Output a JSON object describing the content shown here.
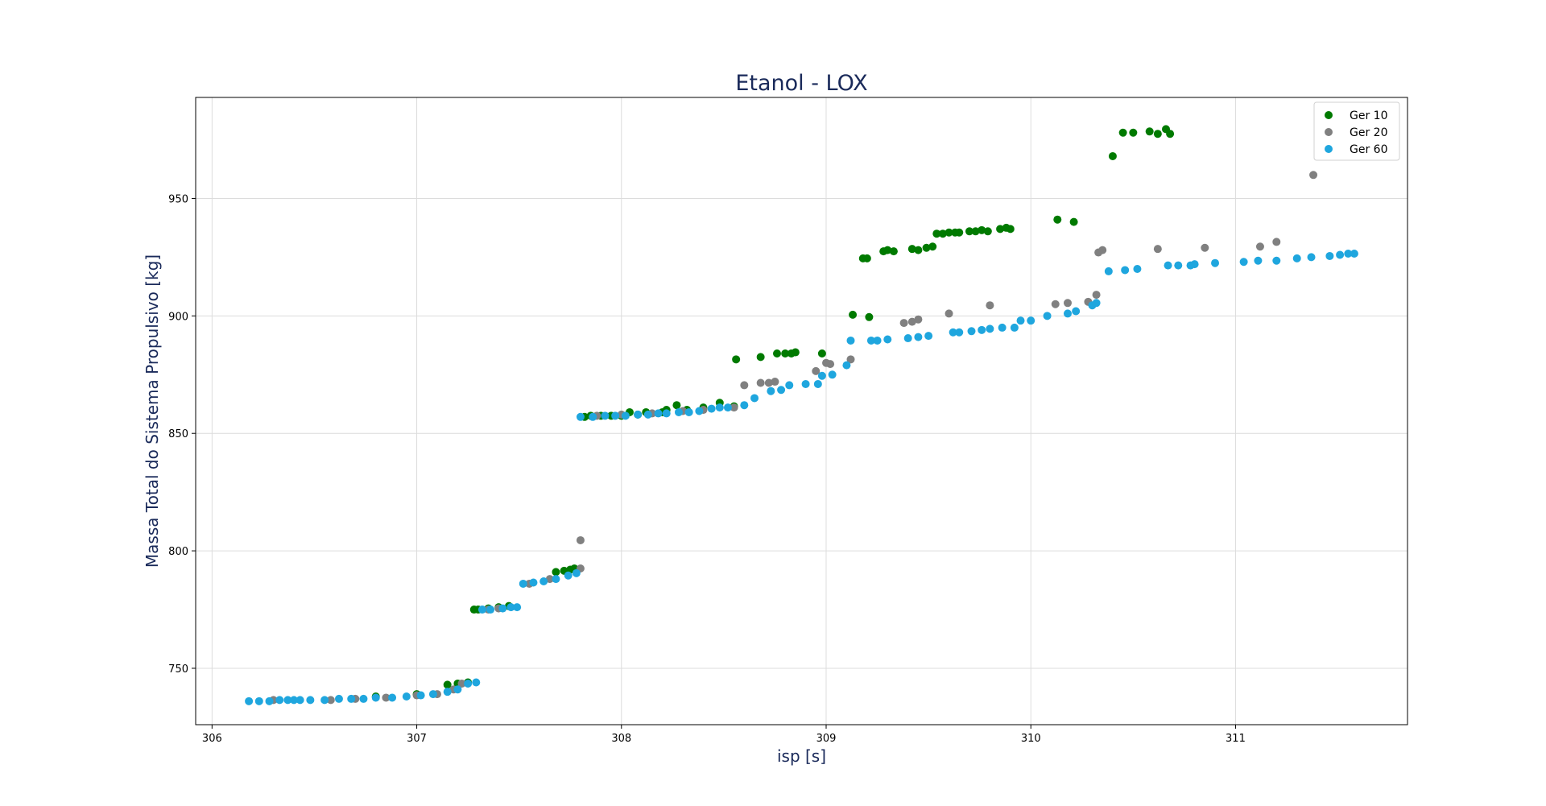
{
  "chart_data": {
    "type": "scatter",
    "title": "Etanol - LOX",
    "xlabel": "isp [s]",
    "ylabel": "Massa Total do Sistema Propulsivo [kg]",
    "xlim": [
      305.92,
      311.84
    ],
    "ylim": [
      726,
      993
    ],
    "xticks": [
      306,
      307,
      308,
      309,
      310,
      311
    ],
    "yticks": [
      750,
      800,
      850,
      900,
      950
    ],
    "grid": true,
    "legend_position": "top-right",
    "series": [
      {
        "name": "Ger 10",
        "color": "#007a00",
        "points": [
          [
            306.8,
            738.0
          ],
          [
            307.0,
            739.0
          ],
          [
            307.15,
            743.0
          ],
          [
            307.2,
            743.5
          ],
          [
            307.25,
            744.0
          ],
          [
            307.28,
            775.0
          ],
          [
            307.3,
            775.0
          ],
          [
            307.35,
            775.5
          ],
          [
            307.4,
            776.0
          ],
          [
            307.45,
            776.5
          ],
          [
            307.68,
            791.0
          ],
          [
            307.72,
            791.5
          ],
          [
            307.75,
            792.0
          ],
          [
            307.77,
            792.5
          ],
          [
            307.82,
            857.0
          ],
          [
            307.85,
            857.5
          ],
          [
            307.9,
            857.5
          ],
          [
            307.95,
            857.5
          ],
          [
            308.0,
            857.5
          ],
          [
            308.04,
            859.0
          ],
          [
            308.08,
            858.0
          ],
          [
            308.12,
            859.0
          ],
          [
            308.2,
            859.0
          ],
          [
            308.22,
            860.0
          ],
          [
            308.27,
            862.0
          ],
          [
            308.32,
            860.0
          ],
          [
            308.4,
            861.0
          ],
          [
            308.48,
            863.0
          ],
          [
            308.55,
            861.5
          ],
          [
            308.56,
            881.5
          ],
          [
            308.68,
            882.5
          ],
          [
            308.76,
            884.0
          ],
          [
            308.8,
            884.0
          ],
          [
            308.83,
            884.0
          ],
          [
            308.85,
            884.5
          ],
          [
            308.98,
            884.0
          ],
          [
            309.13,
            900.5
          ],
          [
            309.21,
            899.5
          ],
          [
            309.18,
            924.5
          ],
          [
            309.2,
            924.5
          ],
          [
            309.28,
            927.5
          ],
          [
            309.3,
            928.0
          ],
          [
            309.33,
            927.5
          ],
          [
            309.42,
            928.5
          ],
          [
            309.45,
            928.0
          ],
          [
            309.49,
            929.0
          ],
          [
            309.52,
            929.5
          ],
          [
            309.54,
            935.0
          ],
          [
            309.57,
            935.0
          ],
          [
            309.6,
            935.5
          ],
          [
            309.63,
            935.5
          ],
          [
            309.65,
            935.5
          ],
          [
            309.7,
            936.0
          ],
          [
            309.73,
            936.0
          ],
          [
            309.76,
            936.5
          ],
          [
            309.79,
            936.0
          ],
          [
            309.85,
            937.0
          ],
          [
            309.88,
            937.5
          ],
          [
            309.9,
            937.0
          ],
          [
            310.13,
            941.0
          ],
          [
            310.21,
            940.0
          ],
          [
            310.4,
            968.0
          ],
          [
            310.45,
            978.0
          ],
          [
            310.5,
            978.0
          ],
          [
            310.58,
            978.5
          ],
          [
            310.62,
            977.5
          ],
          [
            310.66,
            979.5
          ],
          [
            310.68,
            977.5
          ]
        ]
      },
      {
        "name": "Ger 20",
        "color": "#808080",
        "points": [
          [
            306.3,
            736.5
          ],
          [
            306.58,
            736.5
          ],
          [
            306.7,
            737.0
          ],
          [
            306.85,
            737.5
          ],
          [
            307.0,
            738.5
          ],
          [
            307.1,
            739.0
          ],
          [
            307.18,
            741.0
          ],
          [
            307.22,
            743.5
          ],
          [
            307.35,
            775.0
          ],
          [
            307.4,
            775.5
          ],
          [
            307.55,
            786.0
          ],
          [
            307.65,
            788.0
          ],
          [
            307.8,
            792.5
          ],
          [
            307.8,
            804.5
          ],
          [
            307.88,
            857.5
          ],
          [
            308.0,
            858.0
          ],
          [
            308.15,
            858.5
          ],
          [
            308.3,
            859.5
          ],
          [
            308.4,
            860.0
          ],
          [
            308.55,
            861.0
          ],
          [
            308.6,
            870.5
          ],
          [
            308.68,
            871.5
          ],
          [
            308.72,
            871.5
          ],
          [
            308.75,
            872.0
          ],
          [
            308.95,
            876.5
          ],
          [
            309.0,
            880.0
          ],
          [
            309.02,
            879.5
          ],
          [
            309.12,
            881.5
          ],
          [
            309.38,
            897.0
          ],
          [
            309.42,
            897.5
          ],
          [
            309.45,
            898.5
          ],
          [
            309.6,
            901.0
          ],
          [
            309.8,
            904.5
          ],
          [
            310.12,
            905.0
          ],
          [
            310.18,
            905.5
          ],
          [
            310.28,
            906.0
          ],
          [
            310.32,
            909.0
          ],
          [
            310.33,
            927.0
          ],
          [
            310.35,
            928.0
          ],
          [
            310.62,
            928.5
          ],
          [
            310.85,
            929.0
          ],
          [
            311.12,
            929.5
          ],
          [
            311.2,
            931.5
          ],
          [
            311.38,
            960.0
          ]
        ]
      },
      {
        "name": "Ger 60",
        "color": "#1fa6de",
        "points": [
          [
            306.18,
            736.0
          ],
          [
            306.23,
            736.0
          ],
          [
            306.28,
            736.0
          ],
          [
            306.33,
            736.5
          ],
          [
            306.37,
            736.5
          ],
          [
            306.4,
            736.5
          ],
          [
            306.43,
            736.5
          ],
          [
            306.48,
            736.5
          ],
          [
            306.55,
            736.5
          ],
          [
            306.62,
            737.0
          ],
          [
            306.68,
            737.0
          ],
          [
            306.74,
            737.0
          ],
          [
            306.8,
            737.5
          ],
          [
            306.88,
            737.5
          ],
          [
            306.95,
            738.0
          ],
          [
            307.02,
            738.5
          ],
          [
            307.08,
            739.0
          ],
          [
            307.15,
            740.0
          ],
          [
            307.2,
            741.0
          ],
          [
            307.25,
            743.5
          ],
          [
            307.29,
            744.0
          ],
          [
            307.32,
            775.0
          ],
          [
            307.36,
            775.0
          ],
          [
            307.42,
            775.5
          ],
          [
            307.46,
            776.0
          ],
          [
            307.49,
            776.0
          ],
          [
            307.52,
            786.0
          ],
          [
            307.57,
            786.5
          ],
          [
            307.62,
            787.0
          ],
          [
            307.68,
            788.0
          ],
          [
            307.74,
            789.5
          ],
          [
            307.78,
            790.5
          ],
          [
            307.8,
            857.0
          ],
          [
            307.86,
            857.0
          ],
          [
            307.92,
            857.5
          ],
          [
            307.97,
            857.5
          ],
          [
            308.02,
            857.5
          ],
          [
            308.08,
            858.0
          ],
          [
            308.13,
            858.0
          ],
          [
            308.18,
            858.5
          ],
          [
            308.22,
            858.5
          ],
          [
            308.28,
            859.0
          ],
          [
            308.33,
            859.0
          ],
          [
            308.38,
            859.5
          ],
          [
            308.44,
            860.5
          ],
          [
            308.48,
            861.0
          ],
          [
            308.52,
            861.0
          ],
          [
            308.6,
            862.0
          ],
          [
            308.65,
            865.0
          ],
          [
            308.73,
            868.0
          ],
          [
            308.78,
            868.5
          ],
          [
            308.82,
            870.5
          ],
          [
            308.9,
            871.0
          ],
          [
            308.96,
            871.0
          ],
          [
            308.98,
            874.5
          ],
          [
            309.03,
            875.0
          ],
          [
            309.1,
            879.0
          ],
          [
            309.12,
            889.5
          ],
          [
            309.22,
            889.5
          ],
          [
            309.25,
            889.5
          ],
          [
            309.3,
            890.0
          ],
          [
            309.4,
            890.5
          ],
          [
            309.45,
            891.0
          ],
          [
            309.5,
            891.5
          ],
          [
            309.62,
            893.0
          ],
          [
            309.65,
            893.0
          ],
          [
            309.71,
            893.5
          ],
          [
            309.76,
            894.0
          ],
          [
            309.8,
            894.5
          ],
          [
            309.86,
            895.0
          ],
          [
            309.92,
            895.0
          ],
          [
            309.95,
            898.0
          ],
          [
            310.0,
            898.0
          ],
          [
            310.08,
            900.0
          ],
          [
            310.18,
            901.0
          ],
          [
            310.22,
            902.0
          ],
          [
            310.3,
            904.5
          ],
          [
            310.32,
            905.5
          ],
          [
            310.38,
            919.0
          ],
          [
            310.46,
            919.5
          ],
          [
            310.52,
            920.0
          ],
          [
            310.67,
            921.5
          ],
          [
            310.72,
            921.5
          ],
          [
            310.78,
            921.5
          ],
          [
            310.8,
            922.0
          ],
          [
            310.9,
            922.5
          ],
          [
            311.04,
            923.0
          ],
          [
            311.11,
            923.5
          ],
          [
            311.2,
            923.5
          ],
          [
            311.3,
            924.5
          ],
          [
            311.37,
            925.0
          ],
          [
            311.46,
            925.5
          ],
          [
            311.51,
            926.0
          ],
          [
            311.55,
            926.5
          ],
          [
            311.58,
            926.5
          ]
        ]
      }
    ]
  }
}
